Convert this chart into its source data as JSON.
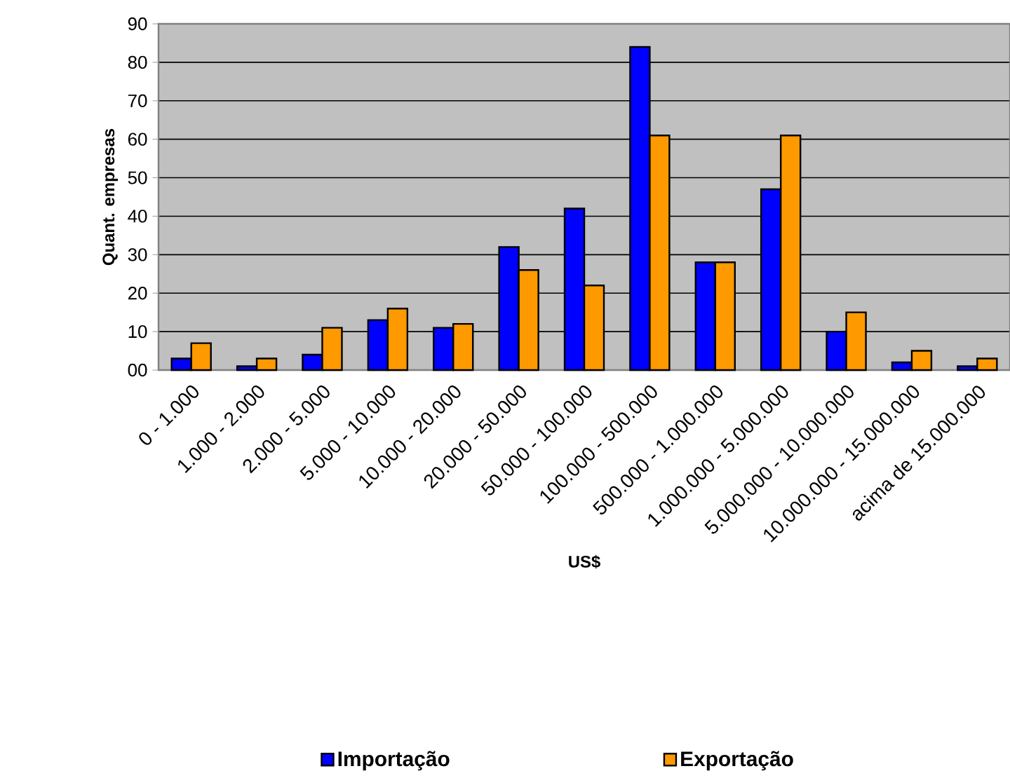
{
  "chart_data": {
    "type": "bar",
    "categories": [
      "0 - 1.000",
      "1.000 - 2.000",
      "2.000 - 5.000",
      "5.000 - 10.000",
      "10.000 - 20.000",
      "20.000 - 50.000",
      "50.000 - 100.000",
      "100.000 - 500.000",
      "500.000 - 1.000.000",
      "1.000.000 - 5.000.000",
      "5.000.000 - 10.000.000",
      "10.000.000 - 15.000.000",
      "acima de 15.000.000"
    ],
    "series": [
      {
        "name": "Importação",
        "color": "#0000ff",
        "values": [
          3,
          1,
          4,
          13,
          11,
          32,
          42,
          84,
          28,
          47,
          10,
          2,
          1
        ]
      },
      {
        "name": "Exportação",
        "color": "#ff9900",
        "values": [
          7,
          3,
          11,
          16,
          12,
          26,
          22,
          61,
          28,
          61,
          15,
          5,
          3
        ]
      }
    ],
    "xlabel": "US$",
    "ylabel": "Quant. empresas",
    "ylim": [
      0,
      90
    ],
    "yticks": [
      {
        "value": 0,
        "label": "00"
      },
      10,
      20,
      30,
      40,
      50,
      60,
      70,
      80,
      90
    ],
    "grid": "y",
    "legend": "bottom"
  }
}
